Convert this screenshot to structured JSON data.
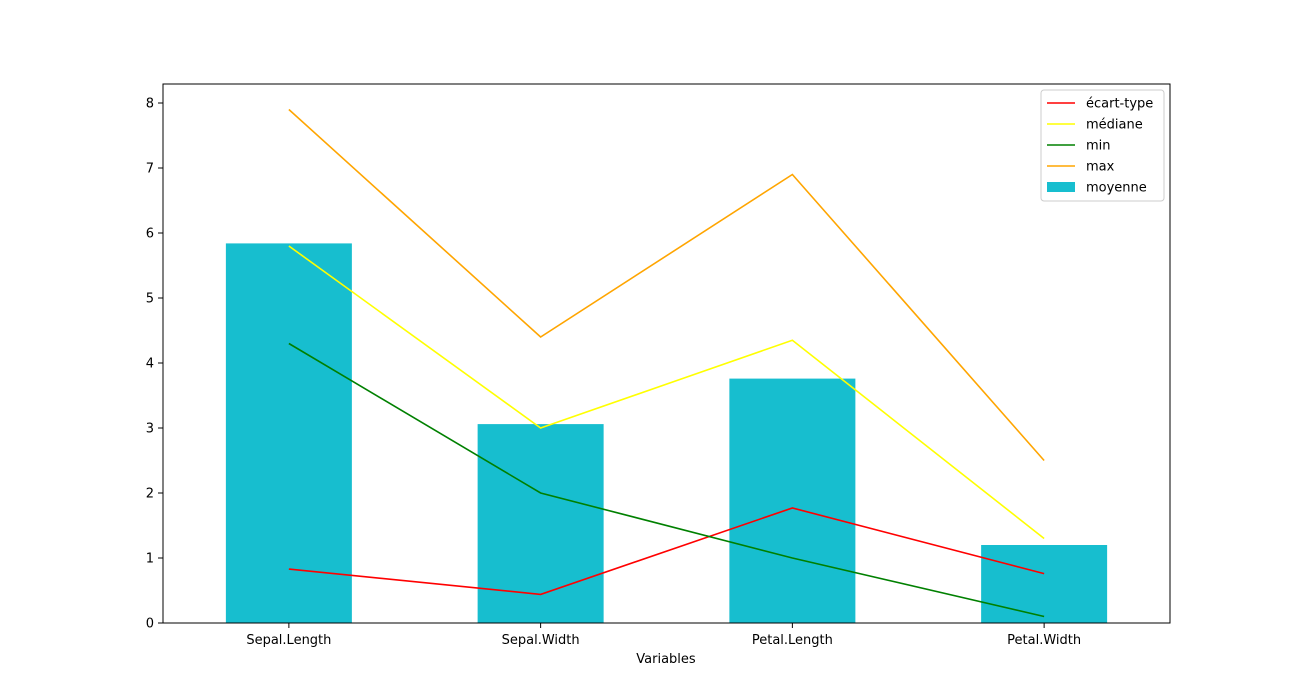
{
  "chart_data": {
    "type": "bar",
    "title": "",
    "xlabel": "Variables",
    "ylabel": "",
    "ylim": [
      0,
      8.3
    ],
    "yticks": [
      "0",
      "1",
      "2",
      "3",
      "4",
      "5",
      "6",
      "7",
      "8"
    ],
    "grid": false,
    "legend_position": "top-right",
    "categories": [
      "Sepal.Length",
      "Sepal.Width",
      "Petal.Length",
      "Petal.Width"
    ],
    "bar_series": {
      "name": "moyenne",
      "color": "#17becf",
      "values": [
        5.84,
        3.06,
        3.76,
        1.2
      ]
    },
    "line_series": [
      {
        "name": "écart-type",
        "color": "#ff0000",
        "values": [
          0.83,
          0.44,
          1.77,
          0.76
        ]
      },
      {
        "name": "médiane",
        "color": "#ffff00",
        "values": [
          5.8,
          3.0,
          4.35,
          1.3
        ]
      },
      {
        "name": "min",
        "color": "#008000",
        "values": [
          4.3,
          2.0,
          1.0,
          0.1
        ]
      },
      {
        "name": "max",
        "color": "#ffa500",
        "values": [
          7.9,
          4.4,
          6.9,
          2.5
        ]
      }
    ]
  }
}
